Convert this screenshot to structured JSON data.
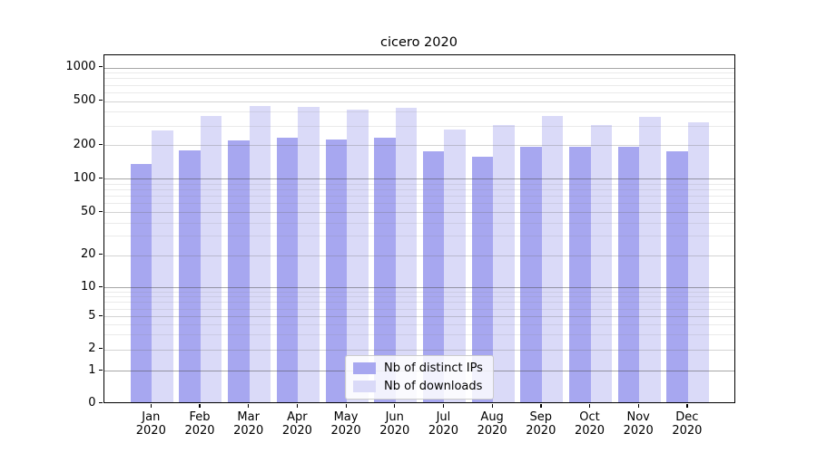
{
  "title": "cicero 2020",
  "legend": {
    "items": [
      {
        "label": "Nb of distinct IPs",
        "color": "#a7a7f0"
      },
      {
        "label": "Nb of downloads",
        "color": "#dadaf8"
      }
    ],
    "position": "lower center"
  },
  "chart_data": {
    "type": "bar",
    "title": "cicero 2020",
    "categories": [
      "Jan",
      "Feb",
      "Mar",
      "Apr",
      "May",
      "Jun",
      "Jul",
      "Aug",
      "Sep",
      "Oct",
      "Nov",
      "Dec"
    ],
    "x_tick_second_line": "2020",
    "series": [
      {
        "name": "Nb of distinct IPs",
        "color": "#a7a7f0",
        "values": [
          131,
          172,
          210,
          222,
          215,
          225,
          170,
          150,
          187,
          185,
          184,
          168
        ]
      },
      {
        "name": "Nb of downloads",
        "color": "#dadaf8",
        "values": [
          260,
          350,
          435,
          423,
          405,
          418,
          265,
          290,
          350,
          290,
          345,
          307
        ]
      }
    ],
    "xlabel": "",
    "ylabel": "",
    "yscale": "symlog",
    "ylim": [
      0,
      1300
    ],
    "yticks": [
      0,
      1,
      2,
      5,
      10,
      20,
      50,
      100,
      200,
      500,
      1000
    ],
    "yticks_minor": [
      3,
      4,
      6,
      7,
      8,
      9,
      30,
      40,
      60,
      70,
      80,
      90,
      300,
      400,
      600,
      700,
      800,
      900
    ],
    "grid": "horizontal",
    "legend_position": "lower center"
  }
}
